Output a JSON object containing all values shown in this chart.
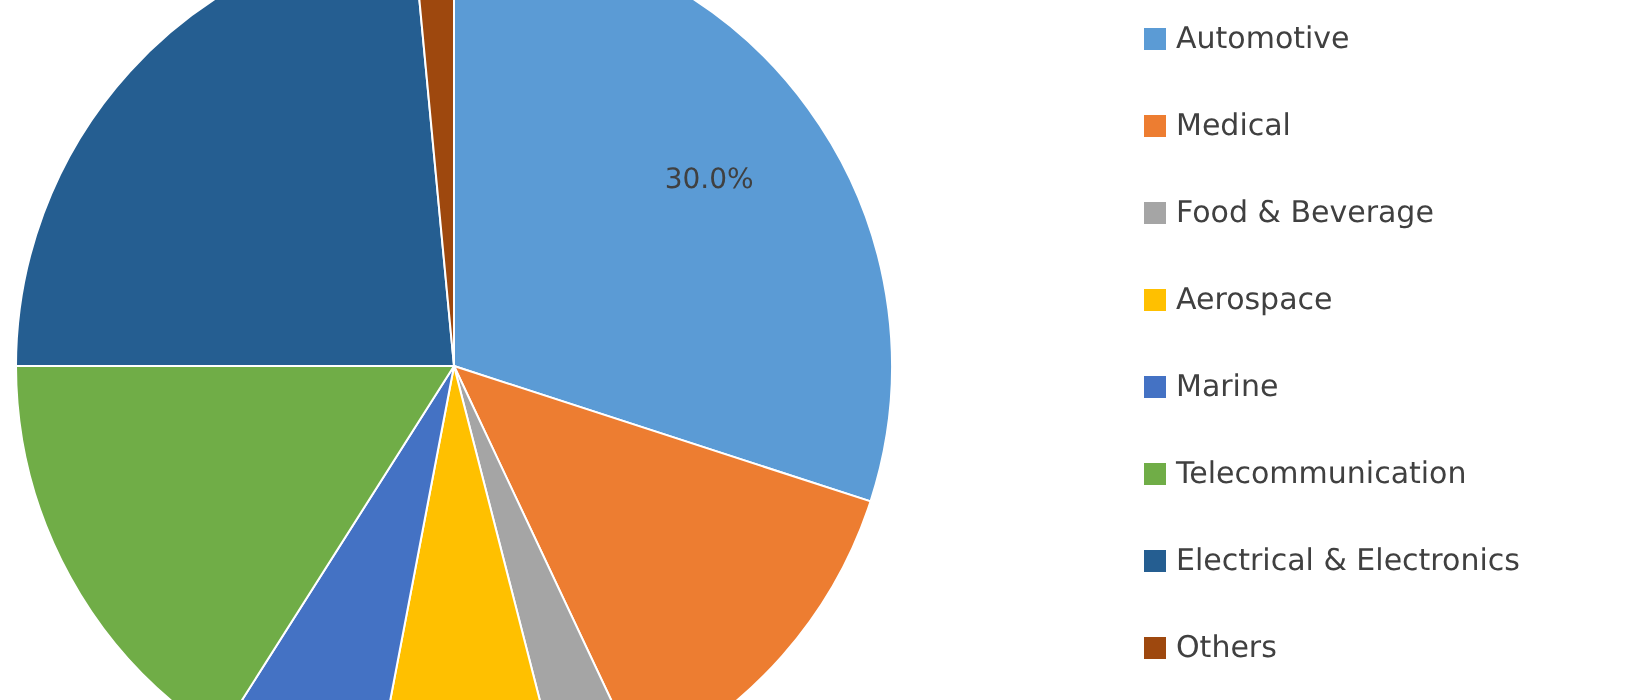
{
  "chart_data": {
    "type": "pie",
    "categories": [
      "Automotive",
      "Medical",
      "Food & Beverage",
      "Aerospace",
      "Marine",
      "Telecommunication",
      "Electrical & Electronics",
      "Others"
    ],
    "values": [
      30,
      13,
      3,
      7,
      6,
      16,
      23.5,
      1.5
    ],
    "colors": [
      "#5b9bd5",
      "#ed7d31",
      "#a5a5a5",
      "#ffc000",
      "#4472c4",
      "#70ad47",
      "#255e91",
      "#9e480e"
    ],
    "value_labels": [
      "30.0%",
      null,
      null,
      null,
      null,
      null,
      null,
      null
    ],
    "legend": "right"
  }
}
